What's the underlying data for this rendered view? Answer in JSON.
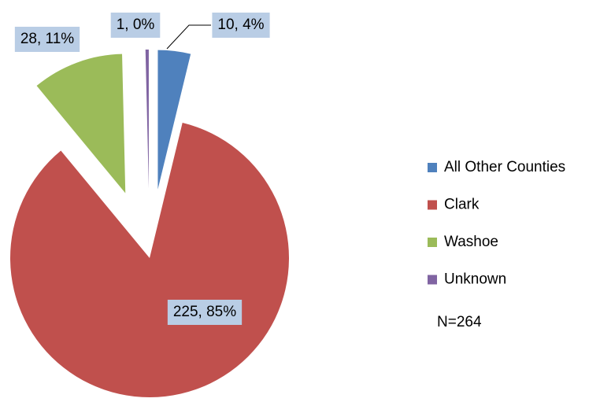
{
  "chart_data": {
    "type": "pie",
    "categories": [
      "All Other Counties",
      "Clark",
      "Washoe",
      "Unknown"
    ],
    "values": [
      10,
      225,
      28,
      1
    ],
    "value_labels": [
      "10, 4%",
      "225, 85%",
      "28, 11%",
      "1, 0%"
    ],
    "colors": [
      "#4f81bd",
      "#c0504d",
      "#9bbb59",
      "#8064a2"
    ],
    "annotation": "N=264",
    "legend": "right"
  }
}
